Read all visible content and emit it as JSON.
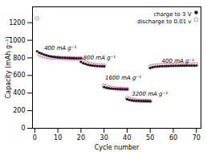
{
  "chart_data": {
    "type": "scatter",
    "xlabel": "Cycle number",
    "ylabel": "Capacity (mAh g⁻¹)",
    "xlim": [
      -1,
      72
    ],
    "ylim": [
      0,
      1380
    ],
    "xticks": [
      0,
      10,
      20,
      30,
      40,
      50,
      60,
      70
    ],
    "yticks": [
      0,
      200,
      400,
      600,
      800,
      1000,
      1200
    ],
    "legend": "upper right",
    "series": [
      {
        "name": "charge to 3 V",
        "color": "#1a1a1a",
        "marker": "dot",
        "x": [
          1,
          2,
          3,
          4,
          5,
          6,
          7,
          8,
          9,
          10,
          11,
          12,
          13,
          14,
          15,
          16,
          17,
          18,
          19,
          20,
          20,
          21,
          22,
          23,
          24,
          25,
          26,
          27,
          28,
          29,
          30,
          30,
          31,
          32,
          33,
          34,
          35,
          36,
          37,
          38,
          39,
          40,
          40,
          41,
          42,
          43,
          44,
          45,
          46,
          47,
          48,
          49,
          50,
          50,
          51,
          52,
          53,
          54,
          55,
          56,
          57,
          58,
          59,
          60,
          61,
          62,
          63,
          64,
          65,
          66,
          67,
          68,
          69,
          70
        ],
        "y": [
          875,
          858,
          848,
          838,
          830,
          822,
          816,
          812,
          808,
          805,
          803,
          801,
          800,
          799,
          798,
          797,
          796,
          795,
          795,
          794,
          755,
          740,
          730,
          722,
          716,
          712,
          710,
          708,
          706,
          705,
          704,
          468,
          460,
          455,
          452,
          450,
          448,
          447,
          446,
          445,
          445,
          444,
          330,
          322,
          317,
          314,
          312,
          311,
          310,
          310,
          309,
          309,
          308,
          685,
          693,
          698,
          701,
          703,
          705,
          706,
          707,
          708,
          709,
          709,
          710,
          710,
          711,
          711,
          711,
          712,
          712,
          712,
          712,
          713
        ]
      },
      {
        "name": "discharge to 0.01 v",
        "color": "#e8559a",
        "marker": "circle",
        "x": [
          1,
          2,
          3,
          4,
          5,
          6,
          7,
          8,
          9,
          10,
          11,
          12,
          13,
          14,
          15,
          16,
          17,
          18,
          19,
          20,
          20,
          21,
          22,
          23,
          24,
          25,
          26,
          27,
          28,
          29,
          30,
          30,
          31,
          32,
          33,
          34,
          35,
          36,
          37,
          38,
          39,
          40,
          40,
          41,
          42,
          43,
          44,
          45,
          46,
          47,
          48,
          49,
          50,
          50,
          51,
          52,
          53,
          54,
          55,
          56,
          57,
          58,
          59,
          60,
          61,
          62,
          63,
          64,
          65,
          66,
          67,
          68,
          69,
          70
        ],
        "y": [
          1250,
          838,
          828,
          820,
          813,
          808,
          805,
          803,
          802,
          801,
          800,
          799,
          798,
          797,
          796,
          796,
          795,
          795,
          794,
          793,
          775,
          760,
          748,
          738,
          730,
          724,
          720,
          717,
          715,
          713,
          712,
          485,
          474,
          466,
          460,
          455,
          452,
          450,
          448,
          447,
          446,
          445,
          345,
          334,
          326,
          320,
          316,
          314,
          312,
          311,
          310,
          310,
          309,
          700,
          708,
          712,
          715,
          717,
          719,
          720,
          721,
          722,
          723,
          723,
          724,
          724,
          725,
          725,
          725,
          726,
          726,
          726,
          727,
          727
        ]
      }
    ],
    "annotations": [
      {
        "text": "400 mA g⁻¹",
        "x": 4.0,
        "y": 912
      },
      {
        "text": "800 mA g⁻¹",
        "x": 21.0,
        "y": 800
      },
      {
        "text": "1600 mA g⁻¹",
        "x": 30.5,
        "y": 572
      },
      {
        "text": "3200 mA g⁻¹",
        "x": 42.0,
        "y": 388
      },
      {
        "text": "400 mA g⁻¹",
        "x": 55.0,
        "y": 762
      }
    ]
  }
}
